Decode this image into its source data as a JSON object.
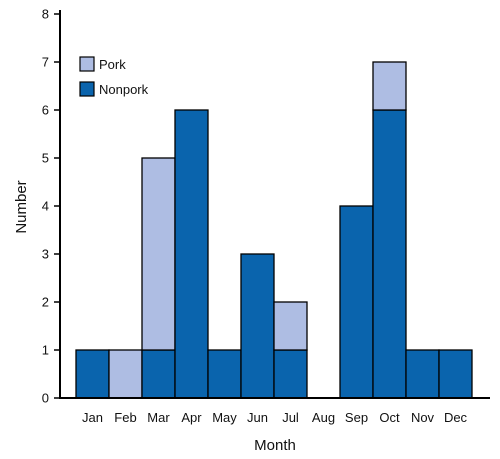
{
  "chart_data": {
    "type": "bar",
    "stacked": true,
    "title": "",
    "xlabel": "Month",
    "ylabel": "Number",
    "ylim": [
      0,
      8
    ],
    "yticks": [
      0,
      1,
      2,
      3,
      4,
      5,
      6,
      7,
      8
    ],
    "grid": false,
    "legend_position": "top-left",
    "categories": [
      "Jan",
      "Feb",
      "Mar",
      "Apr",
      "May",
      "Jun",
      "Jul",
      "Aug",
      "Sep",
      "Oct",
      "Nov",
      "Dec"
    ],
    "series": [
      {
        "name": "Nonpork",
        "color": "#0a64ad",
        "values": [
          1,
          0,
          1,
          6,
          1,
          3,
          1,
          0,
          4,
          6,
          1,
          1
        ]
      },
      {
        "name": "Pork",
        "color": "#aebde3",
        "values": [
          0,
          1,
          4,
          0,
          0,
          0,
          1,
          0,
          0,
          1,
          0,
          0
        ]
      }
    ],
    "legend_order": [
      "Pork",
      "Nonpork"
    ]
  }
}
